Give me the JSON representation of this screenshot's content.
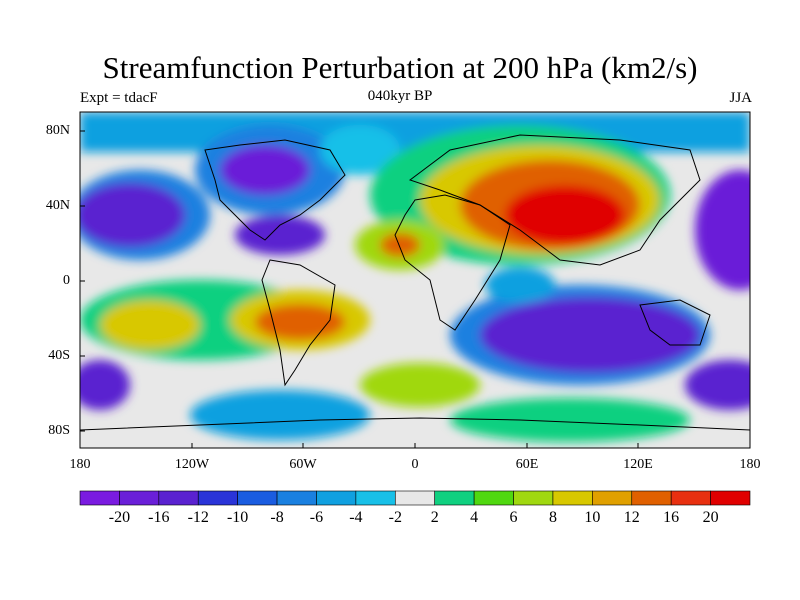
{
  "title": "Streamfunction Perturbation at 200 hPa (km2/s)",
  "left_label": "Expt = tdacF",
  "center_label": "040kyr BP",
  "right_label": "JJA",
  "y_ticks": [
    "80N",
    "40N",
    "0",
    "40S",
    "80S"
  ],
  "x_ticks": [
    "180",
    "120W",
    "60W",
    "0",
    "60E",
    "120E",
    "180"
  ],
  "colorbar": {
    "labels": [
      "-20",
      "-16",
      "-12",
      "-10",
      "-8",
      "-6",
      "-4",
      "-2",
      "2",
      "4",
      "6",
      "8",
      "10",
      "12",
      "16",
      "20"
    ],
    "colors": [
      "#7a1be0",
      "#6a1fd8",
      "#5a22d0",
      "#2a34d8",
      "#1a5ce0",
      "#1a80e0",
      "#10a0e0",
      "#18c0e8",
      "#e8e8e8",
      "#10d080",
      "#50d810",
      "#a0d810",
      "#d8c800",
      "#e0a000",
      "#e06000",
      "#e83010",
      "#e00000"
    ]
  },
  "map_colors": {
    "ocean_bg": "#e8e8e8",
    "coast": "#000000"
  }
}
